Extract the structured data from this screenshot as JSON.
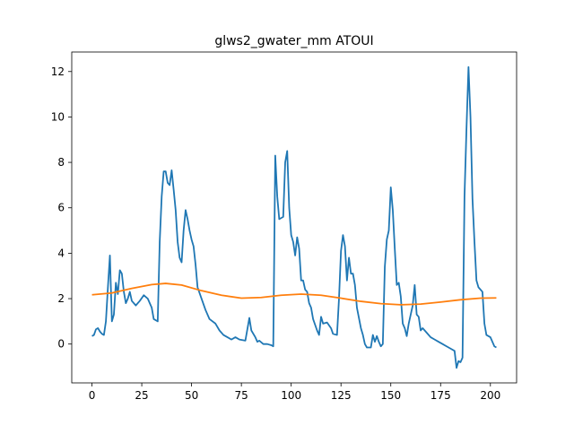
{
  "chart_data": {
    "type": "line",
    "title": "glws2_gwater_mm ATOUI",
    "series": [
      {
        "color": "#1f77b4",
        "x": [
          0,
          1,
          2,
          3,
          4,
          5,
          6,
          7,
          8,
          9,
          10,
          11,
          12,
          13,
          14,
          15,
          16,
          17,
          18,
          19,
          20,
          22,
          24,
          26,
          28,
          30,
          31,
          33,
          34,
          35,
          36,
          37,
          38,
          39,
          40,
          41,
          42,
          43,
          44,
          45,
          46,
          47,
          48,
          49,
          50,
          51,
          52,
          53,
          55,
          57,
          59,
          62,
          64,
          66,
          68,
          70,
          72,
          74,
          77,
          79,
          80,
          82,
          83,
          84,
          86,
          88,
          90,
          91,
          92,
          93,
          94,
          96,
          97,
          98,
          99,
          100,
          101,
          102,
          103,
          104,
          105,
          106,
          107,
          108,
          109,
          110,
          111,
          113,
          114,
          115,
          116,
          118,
          120,
          121,
          123,
          124,
          125,
          126,
          127,
          128,
          129,
          130,
          131,
          132,
          133,
          135,
          136,
          137,
          138,
          140,
          141,
          142,
          143,
          144,
          145,
          146,
          147,
          148,
          149,
          150,
          151,
          152,
          153,
          154,
          155,
          156,
          157,
          158,
          159,
          161,
          162,
          163,
          164,
          165,
          166,
          168,
          170,
          172,
          174,
          176,
          178,
          180,
          182,
          183,
          184,
          185,
          186,
          187,
          188,
          189,
          190,
          191,
          192,
          193,
          194,
          196,
          197,
          198,
          200,
          202,
          203
        ],
        "values": [
          0.35,
          0.4,
          0.65,
          0.7,
          0.55,
          0.45,
          0.4,
          1.0,
          2.5,
          3.9,
          1.0,
          1.3,
          2.7,
          2.2,
          3.25,
          3.1,
          2.3,
          1.8,
          2.0,
          2.3,
          1.9,
          1.7,
          1.9,
          2.15,
          2.0,
          1.6,
          1.1,
          1.0,
          4.5,
          6.5,
          7.6,
          7.6,
          7.1,
          7.0,
          7.65,
          6.8,
          5.9,
          4.5,
          3.8,
          3.6,
          5.0,
          5.9,
          5.5,
          5.0,
          4.6,
          4.3,
          3.5,
          2.5,
          2.0,
          1.5,
          1.1,
          0.9,
          0.6,
          0.4,
          0.3,
          0.2,
          0.3,
          0.2,
          0.15,
          1.15,
          0.6,
          0.3,
          0.1,
          0.15,
          0.0,
          0.0,
          -0.05,
          -0.1,
          8.3,
          6.5,
          5.5,
          5.6,
          8.0,
          8.5,
          6.0,
          4.8,
          4.5,
          3.9,
          4.7,
          4.2,
          2.8,
          2.8,
          2.4,
          2.3,
          1.8,
          1.6,
          1.1,
          0.6,
          0.4,
          1.2,
          0.9,
          0.95,
          0.7,
          0.45,
          0.4,
          2.0,
          4.1,
          4.8,
          4.3,
          2.8,
          3.8,
          3.1,
          3.1,
          2.6,
          1.6,
          0.7,
          0.4,
          0.0,
          -0.15,
          -0.15,
          0.4,
          0.1,
          0.35,
          0.1,
          -0.1,
          0.0,
          3.4,
          4.6,
          5.0,
          6.9,
          5.9,
          4.2,
          2.6,
          2.7,
          2.1,
          0.9,
          0.7,
          0.35,
          0.9,
          1.7,
          2.6,
          1.3,
          1.2,
          0.6,
          0.7,
          0.5,
          0.3,
          0.2,
          0.1,
          0.0,
          -0.1,
          -0.2,
          -0.3,
          -1.05,
          -0.75,
          -0.8,
          -0.6,
          6.5,
          9.5,
          12.2,
          10.0,
          6.4,
          4.5,
          2.8,
          2.5,
          2.3,
          0.9,
          0.4,
          0.3,
          -0.1,
          -0.15
        ]
      },
      {
        "color": "#ff7f0e",
        "x": [
          0,
          10,
          20,
          30,
          37,
          45,
          55,
          65,
          75,
          85,
          95,
          105,
          115,
          125,
          135,
          145,
          155,
          165,
          175,
          185,
          195,
          203
        ],
        "values": [
          2.17,
          2.25,
          2.45,
          2.62,
          2.67,
          2.6,
          2.35,
          2.15,
          2.02,
          2.05,
          2.15,
          2.2,
          2.15,
          2.02,
          1.88,
          1.78,
          1.73,
          1.76,
          1.85,
          1.95,
          2.02,
          2.03
        ]
      }
    ],
    "xlim": [
      -10.15,
      213.15
    ],
    "xticks": [
      0,
      25,
      50,
      75,
      100,
      125,
      150,
      175,
      200
    ],
    "ylim": [
      -1.71,
      12.86
    ],
    "yticks": [
      0,
      2,
      4,
      6,
      8,
      10,
      12
    ]
  }
}
